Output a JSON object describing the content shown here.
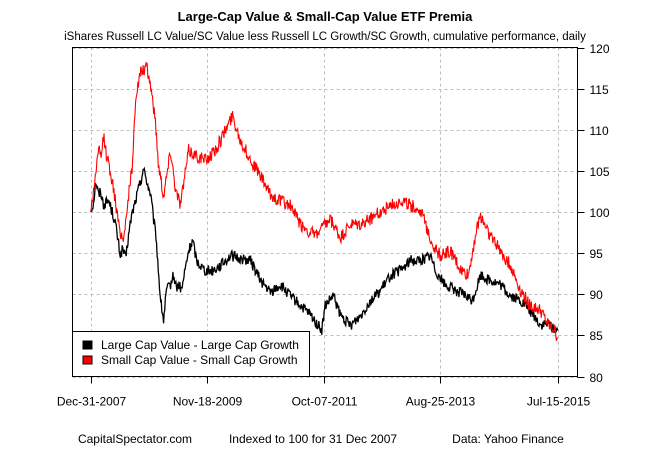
{
  "chart_data": {
    "type": "line",
    "title": "Large-Cap Value & Small-Cap Value ETF Premia",
    "subtitle": "iShares Russell LC Value/SC Value less Russell LC Growth/SC Growth, cumulative performance, daily",
    "xlabel": "",
    "ylabel": "",
    "x_unit": "years since 2007-12-31",
    "xlim": [
      -0.31,
      8.34
    ],
    "ylim": [
      80,
      120
    ],
    "y_axis_side": "right",
    "grid": true,
    "x_ticks": [
      {
        "value": 0.0,
        "label": "Dec-31-2007"
      },
      {
        "value": 2.0,
        "label": "Nov-18-2009"
      },
      {
        "value": 3.99,
        "label": "Oct-07-2011"
      },
      {
        "value": 5.99,
        "label": "Aug-25-2013"
      },
      {
        "value": 8.0,
        "label": "Jul-15-2015"
      }
    ],
    "y_ticks": [
      80,
      85,
      90,
      95,
      100,
      105,
      110,
      115,
      120
    ],
    "legend_placement": "bottom-left",
    "series": [
      {
        "name": "Large Cap Value - Large Cap Growth",
        "color": "#000000",
        "points": [
          [
            0.0,
            100.0
          ],
          [
            0.05,
            101.2
          ],
          [
            0.09,
            103.8
          ],
          [
            0.14,
            102.0
          ],
          [
            0.17,
            102.6
          ],
          [
            0.22,
            100.9
          ],
          [
            0.31,
            101.4
          ],
          [
            0.38,
            99.8
          ],
          [
            0.43,
            98.4
          ],
          [
            0.47,
            96.5
          ],
          [
            0.51,
            94.7
          ],
          [
            0.55,
            95.6
          ],
          [
            0.6,
            94.3
          ],
          [
            0.65,
            97.1
          ],
          [
            0.7,
            99.5
          ],
          [
            0.77,
            101.4
          ],
          [
            0.82,
            102.8
          ],
          [
            0.86,
            103.8
          ],
          [
            0.9,
            105.2
          ],
          [
            0.94,
            104.4
          ],
          [
            0.99,
            103.0
          ],
          [
            1.03,
            102.0
          ],
          [
            1.08,
            99.0
          ],
          [
            1.12,
            97.1
          ],
          [
            1.16,
            93.0
          ],
          [
            1.2,
            89.2
          ],
          [
            1.25,
            86.8
          ],
          [
            1.3,
            90.5
          ],
          [
            1.36,
            91.0
          ],
          [
            1.42,
            92.3
          ],
          [
            1.47,
            90.8
          ],
          [
            1.51,
            91.1
          ],
          [
            1.56,
            90.5
          ],
          [
            1.62,
            93.0
          ],
          [
            1.68,
            95.3
          ],
          [
            1.75,
            96.5
          ],
          [
            1.82,
            94.0
          ],
          [
            1.97,
            92.9
          ],
          [
            2.09,
            92.9
          ],
          [
            2.22,
            93.5
          ],
          [
            2.4,
            94.7
          ],
          [
            2.57,
            94.3
          ],
          [
            2.74,
            94.1
          ],
          [
            2.91,
            91.7
          ],
          [
            3.08,
            90.2
          ],
          [
            3.25,
            91.1
          ],
          [
            3.42,
            89.8
          ],
          [
            3.6,
            88.6
          ],
          [
            3.77,
            87.4
          ],
          [
            3.9,
            86.2
          ],
          [
            3.96,
            85.6
          ],
          [
            4.02,
            88.6
          ],
          [
            4.16,
            89.8
          ],
          [
            4.28,
            87.4
          ],
          [
            4.45,
            86.2
          ],
          [
            4.62,
            87.4
          ],
          [
            4.79,
            89.2
          ],
          [
            4.97,
            90.5
          ],
          [
            5.14,
            92.3
          ],
          [
            5.31,
            92.9
          ],
          [
            5.48,
            94.1
          ],
          [
            5.65,
            94.1
          ],
          [
            5.82,
            94.7
          ],
          [
            5.91,
            92.9
          ],
          [
            6.08,
            91.1
          ],
          [
            6.25,
            90.5
          ],
          [
            6.42,
            89.8
          ],
          [
            6.54,
            89.2
          ],
          [
            6.68,
            92.3
          ],
          [
            6.85,
            91.7
          ],
          [
            7.02,
            91.1
          ],
          [
            7.19,
            89.8
          ],
          [
            7.36,
            89.2
          ],
          [
            7.53,
            88.0
          ],
          [
            7.71,
            86.2
          ],
          [
            7.84,
            86.4
          ],
          [
            7.95,
            85.8
          ],
          [
            8.0,
            85.6
          ]
        ]
      },
      {
        "name": "Small Cap Value - Small Cap Growth",
        "color": "#ff0000",
        "points": [
          [
            0.0,
            100.0
          ],
          [
            0.05,
            102.5
          ],
          [
            0.09,
            105.0
          ],
          [
            0.14,
            107.5
          ],
          [
            0.18,
            106.5
          ],
          [
            0.22,
            109.3
          ],
          [
            0.27,
            107.0
          ],
          [
            0.34,
            105.0
          ],
          [
            0.41,
            102.0
          ],
          [
            0.48,
            98.4
          ],
          [
            0.56,
            96.5
          ],
          [
            0.62,
            100.2
          ],
          [
            0.72,
            106.0
          ],
          [
            0.77,
            114.0
          ],
          [
            0.86,
            117.0
          ],
          [
            0.96,
            117.5
          ],
          [
            1.03,
            115.4
          ],
          [
            1.11,
            111.0
          ],
          [
            1.16,
            106.0
          ],
          [
            1.25,
            102.0
          ],
          [
            1.37,
            107.5
          ],
          [
            1.46,
            102.6
          ],
          [
            1.54,
            101.0
          ],
          [
            1.68,
            107.5
          ],
          [
            1.8,
            106.9
          ],
          [
            1.97,
            106.3
          ],
          [
            2.14,
            107.5
          ],
          [
            2.43,
            111.7
          ],
          [
            2.57,
            108.7
          ],
          [
            2.74,
            106.3
          ],
          [
            2.91,
            104.4
          ],
          [
            3.08,
            102.0
          ],
          [
            3.25,
            101.4
          ],
          [
            3.42,
            100.8
          ],
          [
            3.6,
            98.4
          ],
          [
            3.85,
            97.1
          ],
          [
            3.94,
            97.8
          ],
          [
            4.11,
            99.0
          ],
          [
            4.28,
            96.8
          ],
          [
            4.45,
            98.4
          ],
          [
            4.62,
            98.4
          ],
          [
            4.88,
            99.6
          ],
          [
            5.14,
            100.8
          ],
          [
            5.31,
            101.4
          ],
          [
            5.48,
            100.8
          ],
          [
            5.65,
            100.2
          ],
          [
            5.87,
            95.9
          ],
          [
            5.99,
            94.7
          ],
          [
            6.16,
            95.3
          ],
          [
            6.34,
            92.9
          ],
          [
            6.47,
            92.3
          ],
          [
            6.59,
            97.1
          ],
          [
            6.68,
            99.6
          ],
          [
            6.85,
            97.1
          ],
          [
            7.02,
            95.3
          ],
          [
            7.19,
            93.5
          ],
          [
            7.36,
            90.5
          ],
          [
            7.53,
            88.6
          ],
          [
            7.71,
            88.0
          ],
          [
            7.84,
            86.2
          ],
          [
            7.95,
            85.6
          ],
          [
            8.0,
            84.6
          ]
        ]
      }
    ]
  },
  "footer": {
    "left": "CapitalSpectator.com",
    "center": "Indexed to 100 for 31 Dec 2007",
    "right": "Data: Yahoo Finance"
  }
}
